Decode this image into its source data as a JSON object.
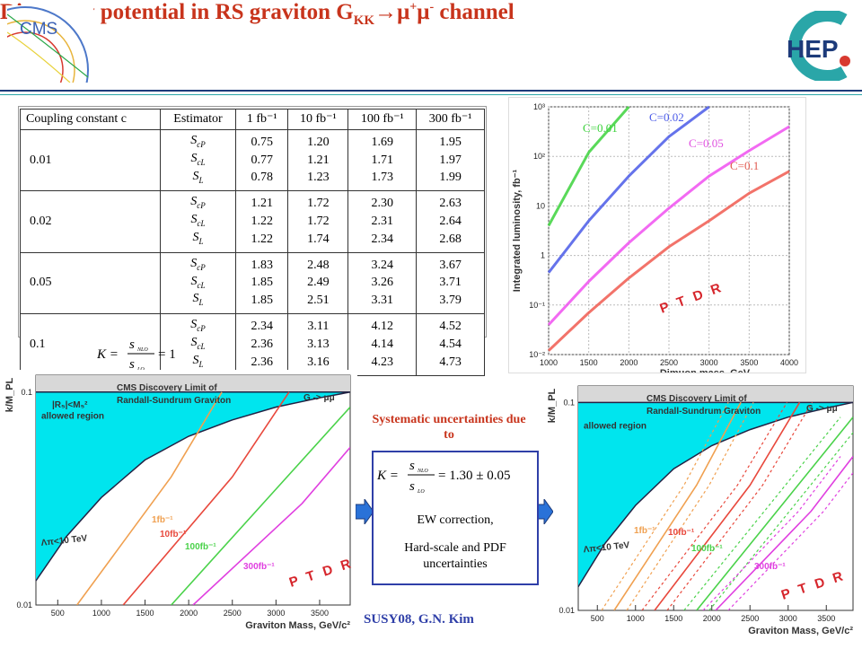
{
  "title": {
    "main": "Discovery potential in RS graviton G",
    "sub": "KK",
    "arrow": "→",
    "mu1": "μ",
    "sup1": "+",
    "mu2": "μ",
    "sup2": "-",
    "end": " channel"
  },
  "logos": {
    "left": "CMS",
    "right": "HEP"
  },
  "table": {
    "headers": [
      "Coupling constant c",
      "Estimator",
      "1 fb⁻¹",
      "10 fb⁻¹",
      "100 fb⁻¹",
      "300 fb⁻¹"
    ],
    "groups": [
      {
        "c": "0.01",
        "rows": [
          [
            "S_cP",
            "0.75",
            "1.20",
            "1.69",
            "1.95"
          ],
          [
            "S_cL",
            "0.77",
            "1.21",
            "1.71",
            "1.97"
          ],
          [
            "S_L",
            "0.78",
            "1.23",
            "1.73",
            "1.99"
          ]
        ]
      },
      {
        "c": "0.02",
        "rows": [
          [
            "S_cP",
            "1.21",
            "1.72",
            "2.30",
            "2.63"
          ],
          [
            "S_cL",
            "1.22",
            "1.72",
            "2.31",
            "2.64"
          ],
          [
            "S_L",
            "1.22",
            "1.74",
            "2.34",
            "2.68"
          ]
        ]
      },
      {
        "c": "0.05",
        "rows": [
          [
            "S_cP",
            "1.83",
            "2.48",
            "3.24",
            "3.67"
          ],
          [
            "S_cL",
            "1.85",
            "2.49",
            "3.26",
            "3.71"
          ],
          [
            "S_L",
            "1.85",
            "2.51",
            "3.31",
            "3.79"
          ]
        ]
      },
      {
        "c": "0.1",
        "rows": [
          [
            "S_cP",
            "2.34",
            "3.11",
            "4.12",
            "4.52"
          ],
          [
            "S_cL",
            "2.36",
            "3.13",
            "4.14",
            "4.54"
          ],
          [
            "S_L",
            "2.36",
            "3.16",
            "4.23",
            "4.73"
          ]
        ]
      }
    ]
  },
  "formula1": {
    "lhs": "K =",
    "num": "s",
    "num_sub": "NLO",
    "den": "s",
    "den_sub": "LO",
    "rhs": "= 1"
  },
  "formula2": {
    "lhs": "K =",
    "num": "s",
    "num_sub": "NLO",
    "den": "s",
    "den_sub": "LO",
    "rhs": "= 1.30 ± 0.05"
  },
  "systematics": {
    "heading": "Systematic uncertainties due to",
    "item1": "EW correction,",
    "item2": "Hard-scale and PDF uncertainties"
  },
  "footer": "SUSY08, G.N. Kim",
  "ptdr": "P T D R",
  "chart_data": [
    {
      "type": "line",
      "title": "",
      "xlabel": "Dimuon mass, GeV",
      "ylabel": "Integrated luminosity, fb⁻¹",
      "xlim": [
        1000,
        4000
      ],
      "ylim": [
        0.01,
        1000
      ],
      "log_y": true,
      "x_ticks": [
        "1000",
        "1500",
        "2000",
        "2500",
        "3000",
        "3500",
        "4000"
      ],
      "y_ticks": [
        "10⁻²",
        "10⁻¹",
        "1",
        "10",
        "10²",
        "10³"
      ],
      "series": [
        {
          "name": "C=0.01",
          "color": "#3cd23c",
          "x": [
            1000,
            1500,
            2000
          ],
          "y": [
            4,
            120,
            1000
          ]
        },
        {
          "name": "C=0.02",
          "color": "#4a5ae8",
          "x": [
            1000,
            1500,
            2000,
            2500,
            3000
          ],
          "y": [
            0.45,
            5,
            40,
            250,
            1000
          ]
        },
        {
          "name": "C=0.05",
          "color": "#f050f0",
          "x": [
            1000,
            1500,
            2000,
            2500,
            3000,
            3500,
            4000
          ],
          "y": [
            0.04,
            0.3,
            1.8,
            9,
            40,
            130,
            400
          ]
        },
        {
          "name": "C=0.1",
          "color": "#f05a50",
          "x": [
            1000,
            1500,
            2000,
            2500,
            3000,
            3500,
            4000
          ],
          "y": [
            0.012,
            0.07,
            0.35,
            1.5,
            5,
            18,
            50
          ]
        }
      ]
    },
    {
      "type": "line",
      "title": "CMS Discovery Limit of Randall-Sundrum Graviton",
      "legend": "G -> μμ",
      "xlabel": "Graviton Mass, GeV/c²",
      "ylabel": "k/M_PL",
      "xlim": [
        250,
        3850
      ],
      "ylim": [
        0.01,
        0.12
      ],
      "log_y": true,
      "x_ticks": [
        "500",
        "1000",
        "1500",
        "2000",
        "2500",
        "3000",
        "3500"
      ],
      "y_ticks": [
        "0.1",
        "0.01"
      ],
      "annotations": [
        "|R₅|<M₅²",
        "allowed region",
        "Λπ<10 TeV"
      ],
      "series": [
        {
          "name": "1fb⁻¹",
          "color": "#f0a050",
          "x": [
            720,
            1800,
            2380
          ],
          "y": [
            0.01,
            0.04,
            0.1
          ]
        },
        {
          "name": "10fb⁻¹",
          "color": "#e8483c",
          "x": [
            1250,
            2500,
            3150
          ],
          "y": [
            0.01,
            0.04,
            0.1
          ]
        },
        {
          "name": "100fb⁻¹",
          "color": "#4ad24a",
          "x": [
            1800,
            3000,
            3850
          ],
          "y": [
            0.01,
            0.035,
            0.085
          ]
        },
        {
          "name": "300fb⁻¹",
          "color": "#e040e0",
          "x": [
            2050,
            3300,
            3850
          ],
          "y": [
            0.01,
            0.03,
            0.055
          ]
        }
      ]
    },
    {
      "type": "line",
      "title": "CMS Discovery Limit of Randall-Sundrum Graviton",
      "legend": "G -> μμ",
      "xlabel": "Graviton Mass, GeV/c²",
      "ylabel": "k/M_PL",
      "xlim": [
        250,
        3850
      ],
      "ylim": [
        0.01,
        0.12
      ],
      "log_y": true,
      "x_ticks": [
        "500",
        "1000",
        "1500",
        "2000",
        "2500",
        "3000",
        "3500"
      ],
      "y_ticks": [
        "0.1",
        "0.01"
      ],
      "annotations": [
        "allowed region",
        "Λπ<10 TeV"
      ],
      "series": [
        {
          "name": "1fb⁻¹",
          "color": "#f0a050",
          "x": [
            720,
            1800,
            2380
          ],
          "y": [
            0.01,
            0.04,
            0.1
          ]
        },
        {
          "name": "10fb⁻¹",
          "color": "#e8483c",
          "x": [
            1250,
            2500,
            3150
          ],
          "y": [
            0.01,
            0.04,
            0.1
          ]
        },
        {
          "name": "100fb⁻¹",
          "color": "#4ad24a",
          "x": [
            1800,
            3000,
            3850
          ],
          "y": [
            0.01,
            0.035,
            0.085
          ]
        },
        {
          "name": "300fb⁻¹",
          "color": "#e040e0",
          "x": [
            2050,
            3300,
            3850
          ],
          "y": [
            0.01,
            0.03,
            0.055
          ]
        }
      ]
    }
  ]
}
